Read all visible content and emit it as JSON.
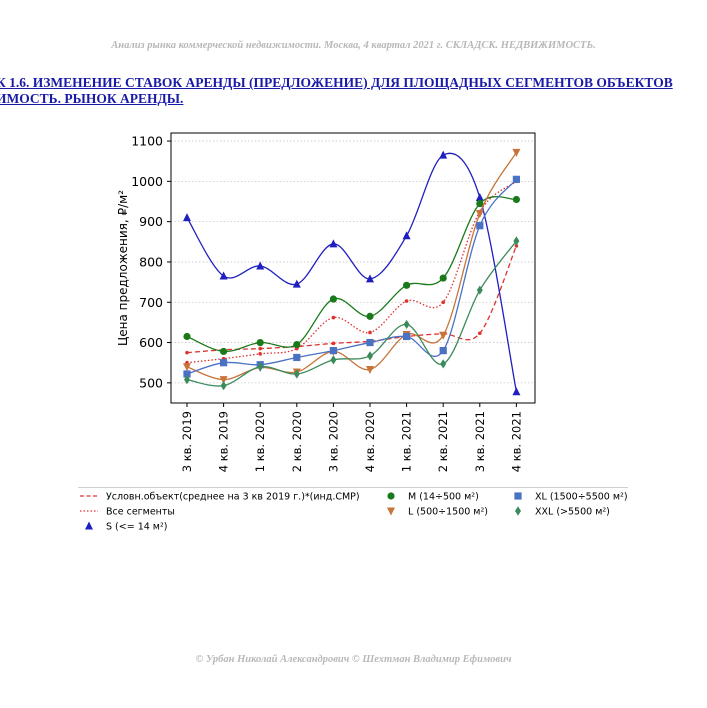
{
  "header": {
    "text": "Анализ рынка коммерческой недвижимости.   Москва,  4 квартал 2021 г.   СКЛАДСК. НЕДВИЖИМОСТЬ."
  },
  "figure_title": {
    "line1": "К 1.6. ИЗМЕНЕНИЕ СТАВОК АРЕНДЫ (ПРЕДЛОЖЕНИЕ) ДЛЯ ПЛОЩАДНЫХ СЕГМЕНТОВ ОБЪЕКТОВ",
    "line2": "ИМОСТЬ. РЫНОК АРЕНДЫ."
  },
  "footer": {
    "text": "© Урбан Николай Александрович   © Шехтман Владимир Ефимович"
  },
  "chart_data": {
    "type": "line",
    "ylabel": "Цена предложения, ₽/м²",
    "xlabel": "",
    "ylim": [
      450,
      1120
    ],
    "yticks": [
      500,
      600,
      700,
      800,
      900,
      1000,
      1100
    ],
    "grid": true,
    "categories": [
      "3 кв. 2019",
      "4 кв. 2019",
      "1 кв. 2020",
      "2 кв. 2020",
      "3 кв. 2020",
      "4 кв. 2020",
      "1 кв. 2021",
      "2 кв. 2021",
      "3 кв. 2021",
      "4 кв. 2021"
    ],
    "legend_position": "bottom",
    "series": [
      {
        "name": "Условн.объект(среднее на 3 кв 2019 г.)*(инд.СМР)",
        "color": "#e03030",
        "dash": "dashed",
        "marker": "dot",
        "values": [
          575,
          582,
          585,
          590,
          598,
          603,
          615,
          622,
          623,
          840
        ]
      },
      {
        "name": "Все сегменты",
        "color": "#e03030",
        "dash": "dotted",
        "marker": "dot",
        "values": [
          550,
          560,
          572,
          585,
          662,
          625,
          703,
          700,
          925,
          1000
        ]
      },
      {
        "name": "S (<= 14 м²)",
        "color": "#1f1fbf",
        "dash": "solid",
        "marker": "triangle-up",
        "values": [
          910,
          765,
          790,
          745,
          845,
          758,
          865,
          1065,
          960,
          478
        ]
      },
      {
        "name": "M (14÷500 м²)",
        "color": "#1a7a1a",
        "dash": "solid",
        "marker": "circle",
        "values": [
          615,
          578,
          600,
          595,
          708,
          665,
          742,
          760,
          945,
          955
        ]
      },
      {
        "name": "L (500÷1500 м²)",
        "color": "#c8733a",
        "dash": "solid",
        "marker": "triangle-down",
        "values": [
          540,
          508,
          538,
          527,
          578,
          533,
          620,
          618,
          920,
          1072
        ]
      },
      {
        "name": "XL (1500÷5500 м²)",
        "color": "#4a72c4",
        "dash": "solid",
        "marker": "square",
        "values": [
          522,
          550,
          545,
          563,
          580,
          600,
          615,
          580,
          890,
          1005
        ]
      },
      {
        "name": "XXL (>5500 м²)",
        "color": "#3a8a5a",
        "dash": "solid",
        "marker": "diamond",
        "values": [
          508,
          493,
          540,
          522,
          557,
          567,
          645,
          547,
          730,
          852
        ]
      }
    ]
  }
}
